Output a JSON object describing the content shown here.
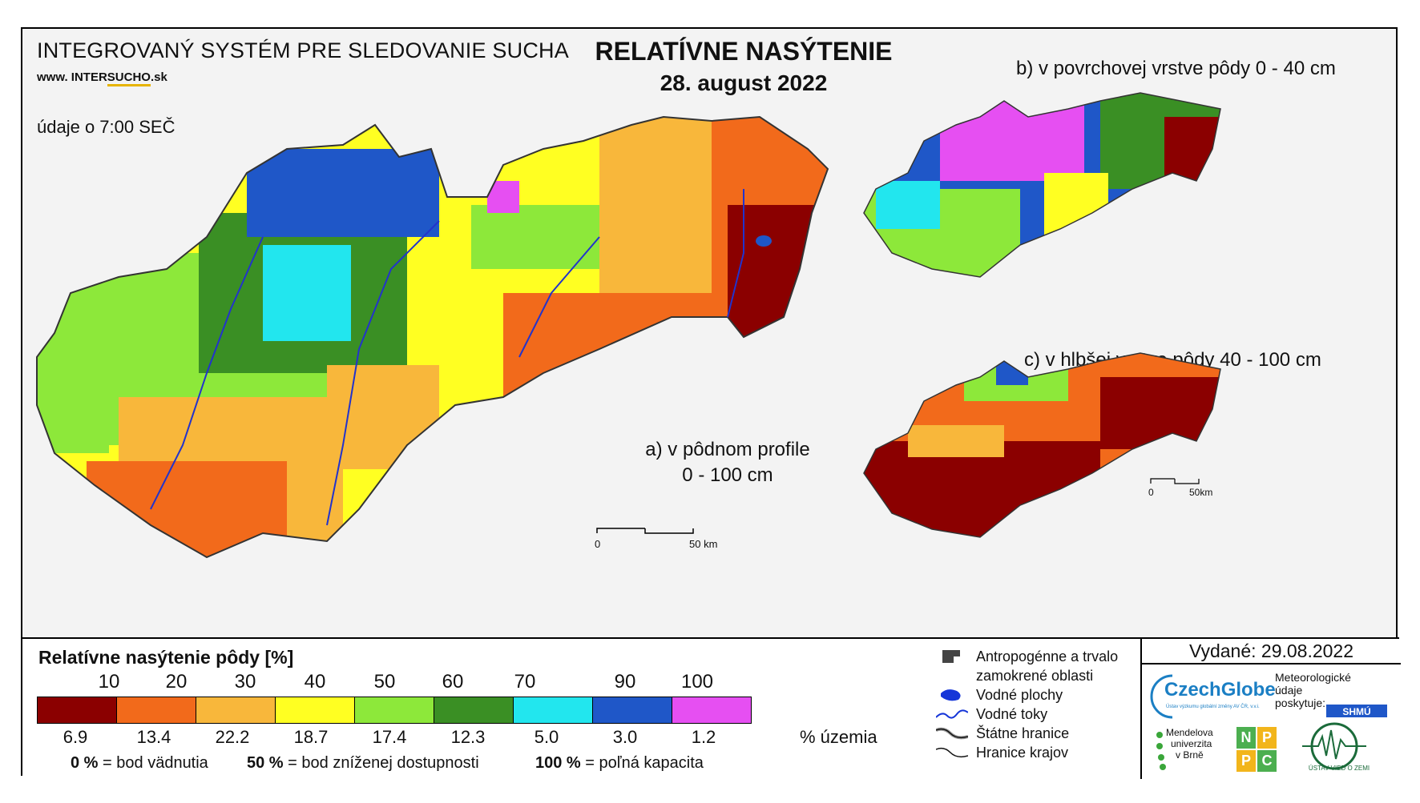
{
  "header": {
    "system_title": "INTEGROVANÝ SYSTÉM PRE SLEDOVANIE SUCHA",
    "website_prefix": "www. INTER",
    "website_highlight": "SUCHO",
    "website_suffix": ".sk",
    "data_time": "údaje o 7:00 SEČ",
    "main_title": "RELATÍVNE NASÝTENIE",
    "date": "28. august 2022"
  },
  "maps": {
    "a_label_line1": "a) v pôdnom profile",
    "a_label_line2": "0 - 100 cm",
    "b_label": "b) v povrchovej vrstve pôdy 0 - 40 cm",
    "c_label": "c) v hlbšej vrstve pôdy 40 - 100 cm",
    "scale_main": {
      "zero": "0",
      "end": "50 km"
    },
    "scale_small": {
      "zero": "0",
      "end": "50km"
    }
  },
  "legend": {
    "title": "Relatívne nasýtenie pôdy [%]",
    "thresholds": [
      "10",
      "20",
      "30",
      "40",
      "50",
      "60",
      "70",
      "90",
      "100"
    ],
    "classes": [
      {
        "color": "#8b0000",
        "percent": "6.9"
      },
      {
        "color": "#f26a1b",
        "percent": "13.4"
      },
      {
        "color": "#f8b73b",
        "percent": "22.2"
      },
      {
        "color": "#ffff22",
        "percent": "18.7"
      },
      {
        "color": "#8de83a",
        "percent": "17.4"
      },
      {
        "color": "#3a8f24",
        "percent": "12.3"
      },
      {
        "color": "#22e6ee",
        "percent": "5.0"
      },
      {
        "color": "#1f57c8",
        "percent": "3.0"
      },
      {
        "color": "#e64ff2",
        "percent": "1.2"
      }
    ],
    "percent_unit": "% územia",
    "def_0_key": "0 %",
    "def_0_text": "= bod vädnutia",
    "def_50_key": "50 %",
    "def_50_text": "= bod zníženej dostupnosti",
    "def_100_key": "100 %",
    "def_100_text": "= poľná kapacita"
  },
  "map_legend": {
    "items": [
      {
        "icon": "anthropogenic-area-icon",
        "label": "Antropogénne a trvalo"
      },
      {
        "icon": "",
        "label": "zamokrené oblasti"
      },
      {
        "icon": "water-body-icon",
        "label": "Vodné plochy"
      },
      {
        "icon": "river-icon",
        "label": "Vodné toky"
      },
      {
        "icon": "state-border-icon",
        "label": "Štátne hranice"
      },
      {
        "icon": "region-border-icon",
        "label": "Hranice krajov"
      }
    ]
  },
  "credits": {
    "issued": "Vydané: 29.08.2022",
    "czechglobe": "CzechGlobe",
    "czechglobe_sub": "Ústav výzkumu globální změny AV ČR, v.v.i.",
    "meteo_line1": "Meteorologické",
    "meteo_line2": "údaje",
    "meteo_line3": "poskytuje:",
    "shmu": "SHMÚ",
    "mendel_line1": "Mendelova",
    "mendel_line2": "univerzita",
    "mendel_line3": "v Brně",
    "npc": [
      "N",
      "P",
      "P",
      "C"
    ],
    "uvz": "ÚSTAV VIED O ZEMI"
  }
}
